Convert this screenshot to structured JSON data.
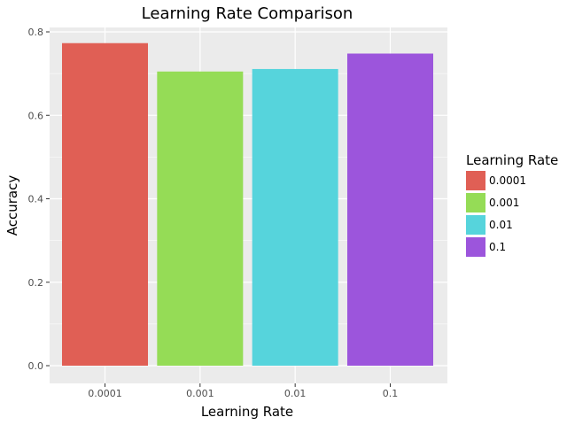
{
  "chart_data": {
    "type": "bar",
    "title": "Learning Rate Comparison",
    "xlabel": "Learning Rate",
    "ylabel": "Accuracy",
    "categories": [
      "0.0001",
      "0.001",
      "0.01",
      "0.1"
    ],
    "values": [
      0.773,
      0.705,
      0.711,
      0.748
    ],
    "colors": [
      "#e05f55",
      "#95dc56",
      "#56d4dc",
      "#9c55dc"
    ],
    "ylim": [
      0,
      0.8
    ],
    "yticks": [
      0.0,
      0.2,
      0.4,
      0.6,
      0.8
    ],
    "ytick_labels": [
      "0.0",
      "0.2",
      "0.4",
      "0.6",
      "0.8"
    ],
    "grid": true,
    "legend": {
      "title": "Learning Rate",
      "placement": "right",
      "labels": [
        "0.0001",
        "0.001",
        "0.01",
        "0.1"
      ]
    },
    "panel_background": "#ebebeb",
    "grid_color": "#ffffff"
  }
}
